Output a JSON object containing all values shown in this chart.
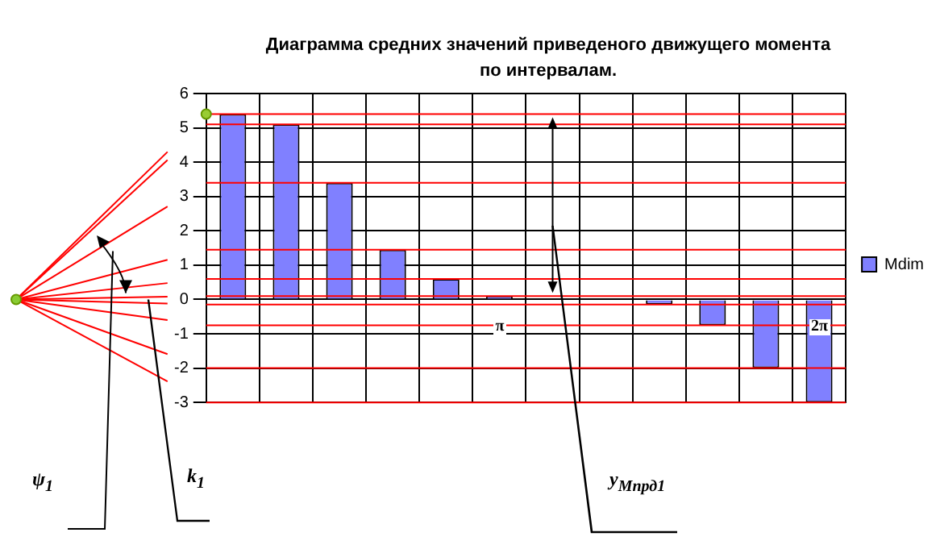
{
  "chart_data": {
    "type": "bar",
    "title": "Диаграмма средних значений приведеного движущего момента по интервалам.",
    "categories": [
      null,
      null,
      null,
      null,
      null,
      null,
      null,
      null,
      null,
      null,
      null,
      null
    ],
    "series": [
      {
        "name": "Mdim",
        "color": "#8080ff",
        "values": [
          5.4,
          5.1,
          3.4,
          1.45,
          0.6,
          0.1,
          null,
          null,
          -0.15,
          -0.75,
          -2,
          -3
        ]
      }
    ],
    "ylim": [
      -3,
      6
    ],
    "yticks": [
      -3,
      -2,
      -1,
      0,
      1,
      2,
      3,
      4,
      5,
      6
    ],
    "grid": true,
    "legend": "right",
    "ref_lines": [
      {
        "axis": "y",
        "value": 5.4,
        "color": "#ff0000"
      },
      {
        "axis": "y",
        "value": 5.1,
        "color": "#ff0000"
      },
      {
        "axis": "y",
        "value": 3.4,
        "color": "#ff0000"
      },
      {
        "axis": "y",
        "value": 1.45,
        "color": "#ff0000"
      },
      {
        "axis": "y",
        "value": 0.6,
        "color": "#ff0000"
      },
      {
        "axis": "y",
        "value": 0.1,
        "color": "#ff0000"
      },
      {
        "axis": "y",
        "value": -0.15,
        "color": "#ff0000"
      },
      {
        "axis": "y",
        "value": -0.75,
        "color": "#ff0000"
      },
      {
        "axis": "y",
        "value": -2,
        "color": "#ff0000"
      },
      {
        "axis": "y",
        "value": -3,
        "color": "#ff0000"
      }
    ],
    "annotations": [
      {
        "text": "π",
        "y": -0.65
      },
      {
        "text": "2π",
        "y": -0.65
      },
      "ψ$_{1}$",
      "k$_{1}$",
      "y$_{Мпрд1}$"
    ]
  }
}
